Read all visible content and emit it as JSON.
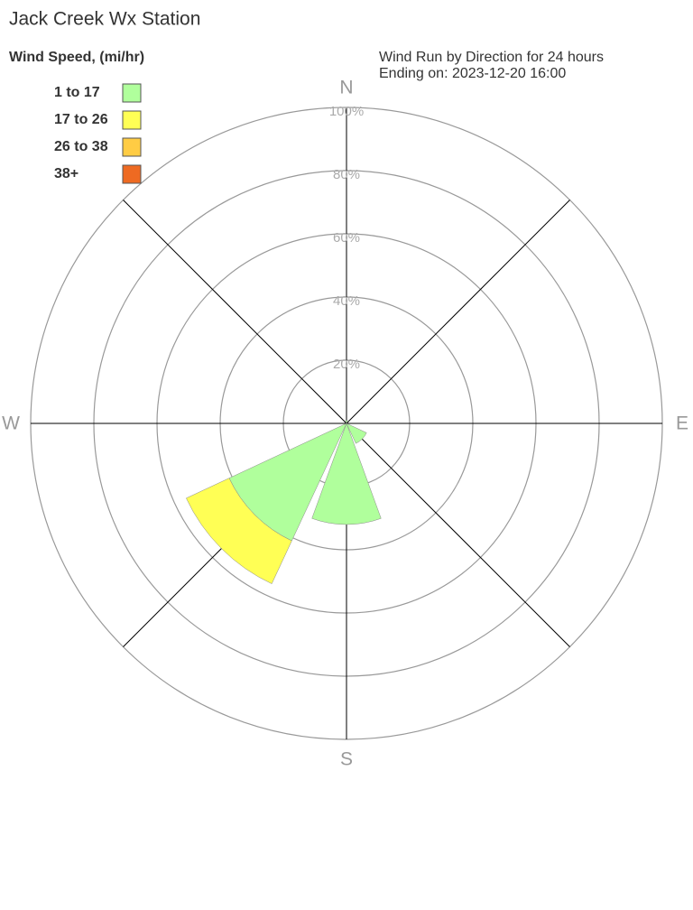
{
  "chart_data": {
    "type": "windrose",
    "title": "Jack Creek Wx Station",
    "legend_title": "Wind Speed, (mi/hr)",
    "subtitle": [
      "Wind Run by Direction for 24 hours",
      "Ending on: 2023-12-20 16:00"
    ],
    "categories": [
      "N",
      null,
      "E",
      null,
      "S",
      null,
      "W",
      null
    ],
    "rlim": [
      0,
      100
    ],
    "rticks": [
      {
        "value": 20,
        "label": "20%"
      },
      {
        "value": 40,
        "label": "40%"
      },
      {
        "value": 60,
        "label": "60%"
      },
      {
        "value": 80,
        "label": "80%"
      },
      {
        "value": 100,
        "label": "100%"
      }
    ],
    "series": [
      {
        "name": "1 to 17",
        "color": "#b0ff9c",
        "values": [
          1,
          0,
          0,
          7,
          32,
          41,
          0,
          0
        ]
      },
      {
        "name": "17 to 26",
        "color": "#ffff55",
        "values": [
          0,
          0,
          0,
          0,
          0,
          15,
          0,
          0
        ]
      },
      {
        "name": "26 to 38",
        "color": "#ffcc44",
        "values": [
          0,
          0,
          0,
          0,
          0,
          0,
          0,
          0
        ]
      },
      {
        "name": "38+",
        "color": "#ee6a22",
        "values": [
          0,
          0,
          0,
          0,
          0,
          0,
          0,
          0
        ]
      }
    ]
  }
}
